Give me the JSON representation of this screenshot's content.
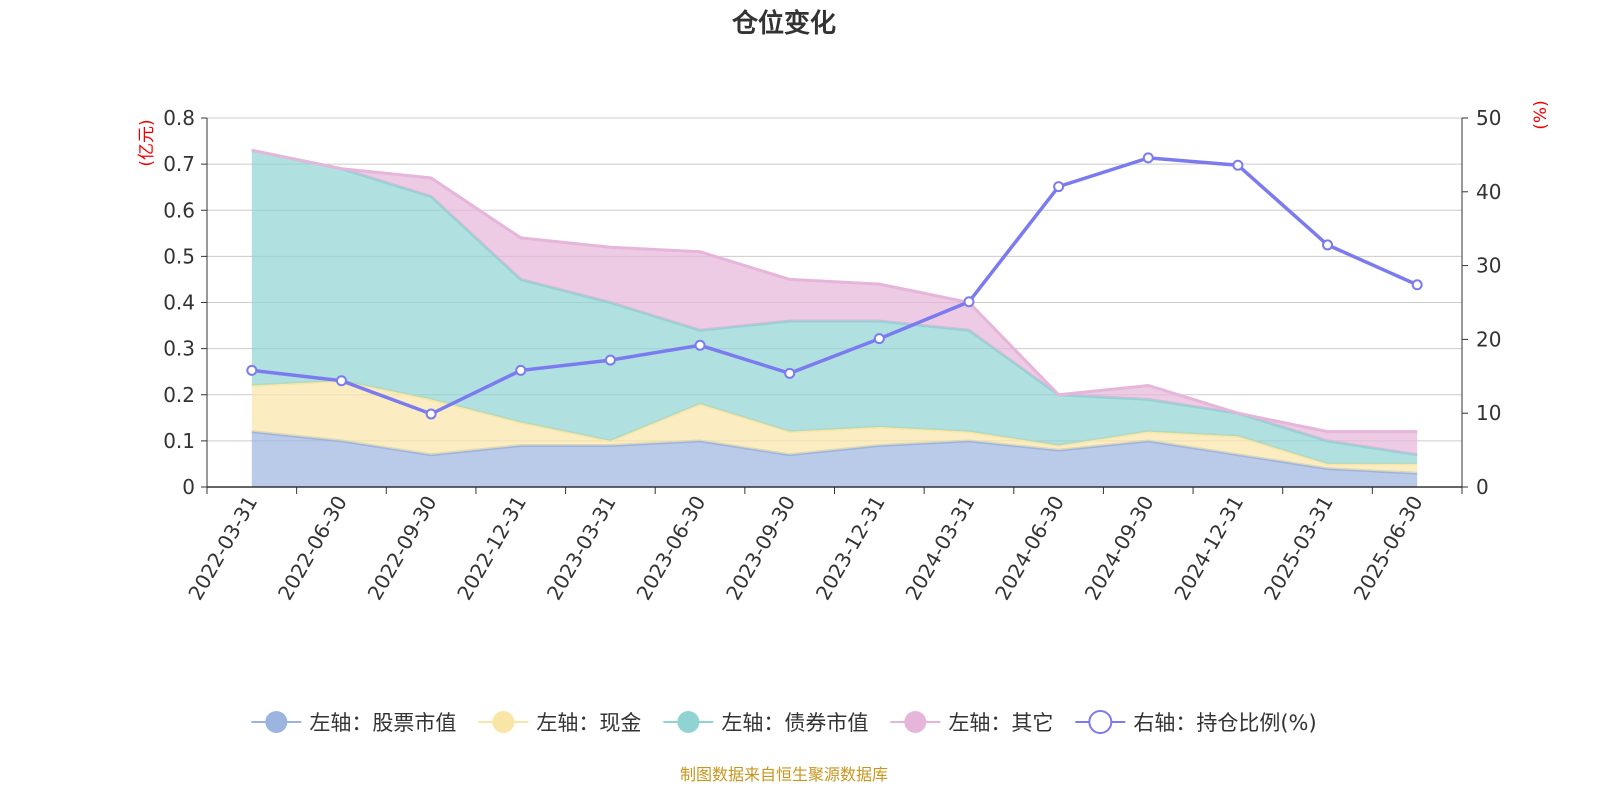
{
  "chart_data": {
    "type": "area",
    "title": "仓位变化",
    "left_axis_unit": "(亿元)",
    "right_axis_unit": "(%)",
    "categories": [
      "2022-03-31",
      "2022-06-30",
      "2022-09-30",
      "2022-12-31",
      "2023-03-31",
      "2023-06-30",
      "2023-09-30",
      "2023-12-31",
      "2024-03-31",
      "2024-06-30",
      "2024-09-30",
      "2024-12-31",
      "2025-03-31",
      "2025-06-30"
    ],
    "left_ylim": [
      0,
      0.8
    ],
    "left_ticks": [
      "0",
      "0.1",
      "0.2",
      "0.3",
      "0.4",
      "0.5",
      "0.6",
      "0.7",
      "0.8"
    ],
    "left_tick_values": [
      0,
      0.1,
      0.2,
      0.3,
      0.4,
      0.5,
      0.6,
      0.7,
      0.8
    ],
    "right_ylim": [
      0,
      50
    ],
    "right_ticks": [
      "0",
      "10",
      "20",
      "30",
      "40",
      "50"
    ],
    "right_tick_values": [
      0,
      10,
      20,
      30,
      40,
      50
    ],
    "stacked": true,
    "grid": true,
    "legend_position": "bottom",
    "series": [
      {
        "name": "左轴：股票市值",
        "axis": "left",
        "kind": "area",
        "color": "#9bb5e0",
        "values": [
          0.12,
          0.1,
          0.07,
          0.09,
          0.09,
          0.1,
          0.07,
          0.09,
          0.1,
          0.08,
          0.1,
          0.07,
          0.04,
          0.03
        ]
      },
      {
        "name": "左轴：现金",
        "axis": "left",
        "kind": "area",
        "color": "#f9e6a6",
        "values": [
          0.1,
          0.13,
          0.12,
          0.05,
          0.01,
          0.08,
          0.05,
          0.04,
          0.02,
          0.01,
          0.02,
          0.04,
          0.01,
          0.02
        ]
      },
      {
        "name": "左轴：债券市值",
        "axis": "left",
        "kind": "area",
        "color": "#8fd3d3",
        "values": [
          0.51,
          0.46,
          0.44,
          0.31,
          0.3,
          0.16,
          0.24,
          0.23,
          0.22,
          0.11,
          0.07,
          0.05,
          0.05,
          0.02
        ]
      },
      {
        "name": "左轴：其它",
        "axis": "left",
        "kind": "area",
        "color": "#e6b5da",
        "values": [
          0.0,
          0.0,
          0.04,
          0.09,
          0.12,
          0.17,
          0.09,
          0.08,
          0.06,
          0.0,
          0.03,
          0.0,
          0.02,
          0.05
        ]
      },
      {
        "name": "右轴：持仓比例(%)",
        "axis": "right",
        "kind": "line",
        "color": "#7b7bef",
        "values": [
          15.8,
          14.4,
          9.9,
          15.8,
          17.2,
          19.2,
          15.4,
          20.1,
          25.1,
          40.7,
          44.6,
          43.6,
          32.8,
          27.4
        ]
      }
    ]
  },
  "source_note": "制图数据来自恒生聚源数据库"
}
